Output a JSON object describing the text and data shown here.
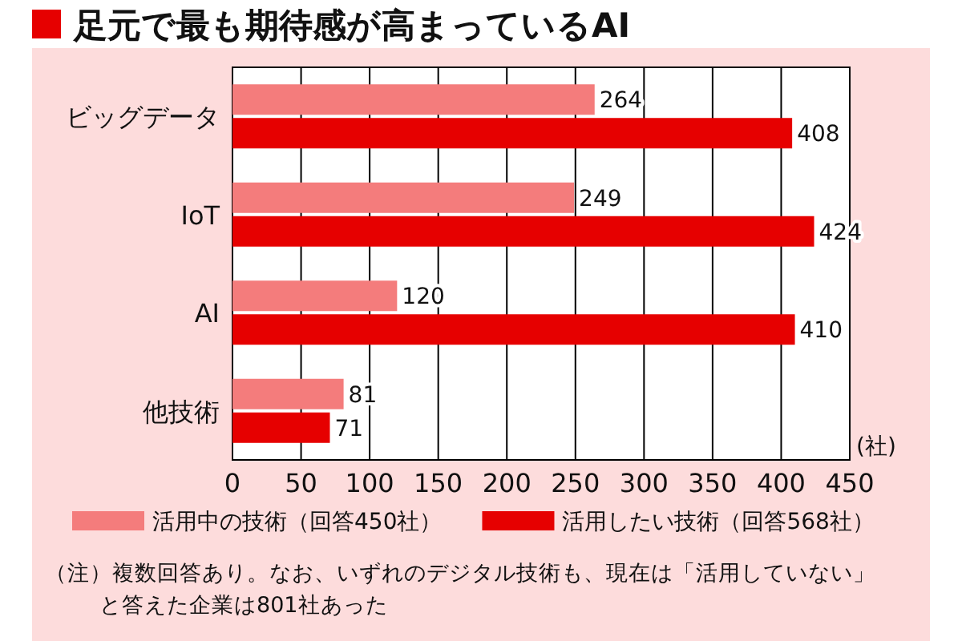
{
  "chart_data": {
    "type": "bar",
    "orientation": "horizontal",
    "title": "足元で最も期待感が高まっているAI",
    "categories": [
      "ビッグデータ",
      "IoT",
      "AI",
      "他技術"
    ],
    "series": [
      {
        "name": "活用中の技術（回答450社）",
        "color": "#f47c7c",
        "values": [
          264,
          249,
          120,
          81
        ]
      },
      {
        "name": "活用したい技術（回答568社）",
        "color": "#e60000",
        "values": [
          408,
          424,
          410,
          71
        ]
      }
    ],
    "xlabel": "(社)",
    "xlim": [
      0,
      450
    ],
    "xticks": [
      0,
      50,
      100,
      150,
      200,
      250,
      300,
      350,
      400,
      450
    ],
    "grid": "x",
    "legend": "bottom",
    "data_labels": true,
    "annotations": [
      "（注）複数回答あり。なお、いずれのデジタル技術も、現在は「活用していない」",
      "と答えた企業は801社あった"
    ]
  }
}
